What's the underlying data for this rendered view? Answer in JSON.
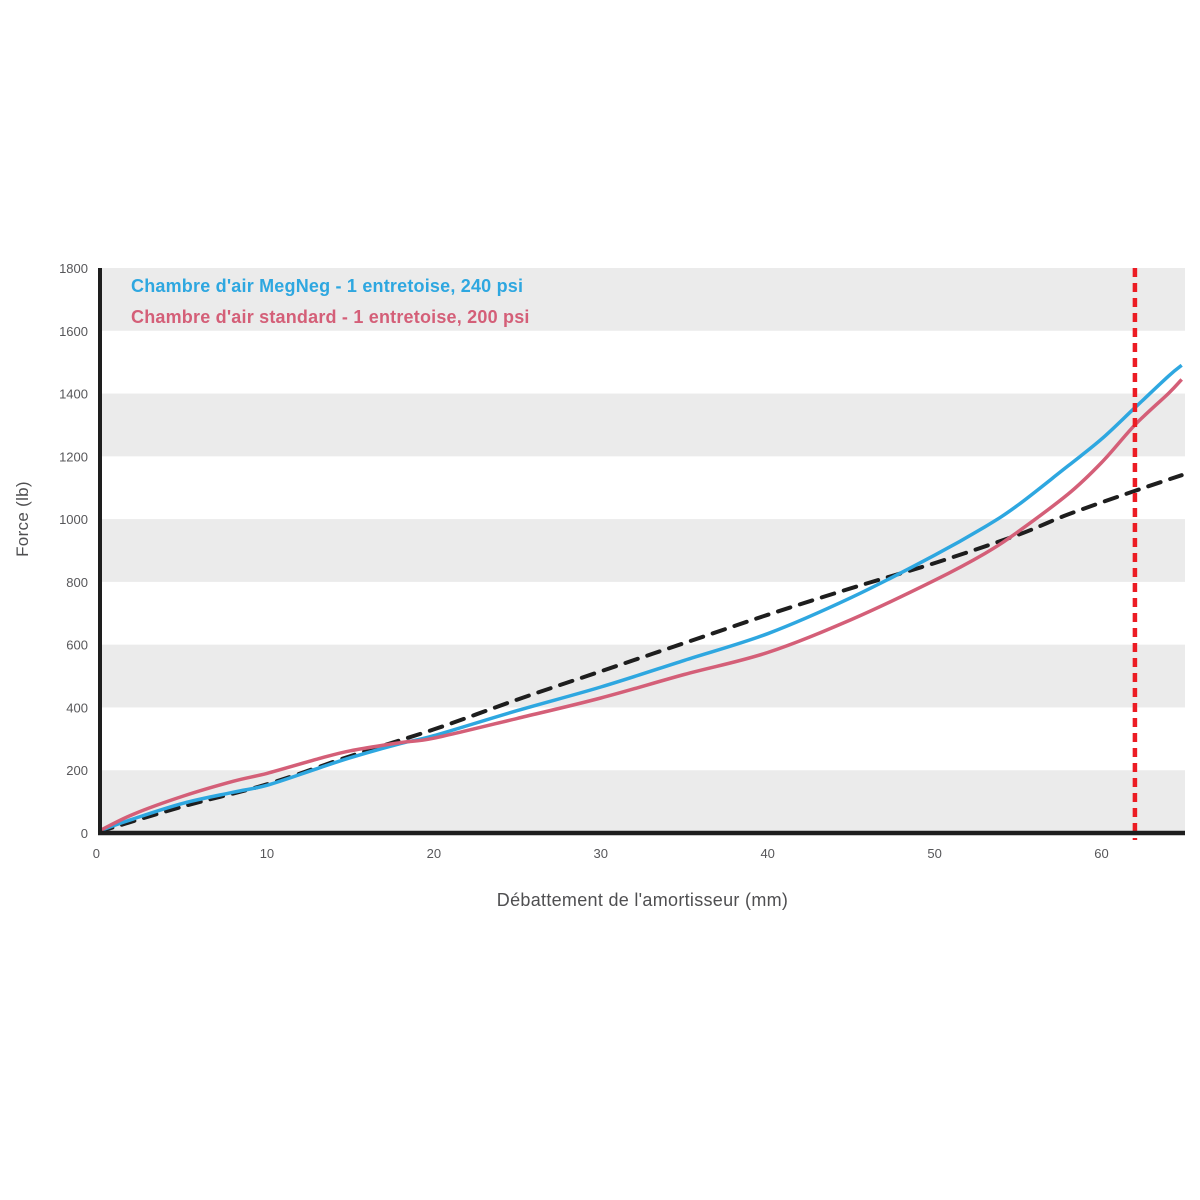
{
  "chart_data": {
    "type": "line",
    "title": "",
    "xlabel": "Débattement de l'amortisseur (mm)",
    "ylabel": "Force (lb)",
    "xlim": [
      0,
      65
    ],
    "ylim": [
      0,
      1800
    ],
    "x_ticks": [
      0,
      10,
      20,
      30,
      40,
      50,
      60
    ],
    "y_ticks": [
      0,
      200,
      400,
      600,
      800,
      1000,
      1200,
      1400,
      1600,
      1800
    ],
    "grid": "alternating-row-bands",
    "band_rows_lb": [
      [
        0,
        200
      ],
      [
        400,
        600
      ],
      [
        800,
        1000
      ],
      [
        1200,
        1400
      ],
      [
        1600,
        1800
      ]
    ],
    "band_color": "#EBEBEB",
    "axis_color": "#1E1E1E",
    "tick_label_color": "#57575a",
    "legend_position": "top-left-inside",
    "series": [
      {
        "name": "megneg",
        "label": "Chambre d'air MegNeg - 1 entretoise, 240 psi",
        "color": "#2EA7E0",
        "style": "solid",
        "points": [
          [
            0,
            8
          ],
          [
            2,
            45
          ],
          [
            5,
            95
          ],
          [
            8,
            130
          ],
          [
            10,
            152
          ],
          [
            13,
            205
          ],
          [
            15,
            240
          ],
          [
            18,
            285
          ],
          [
            20,
            310
          ],
          [
            25,
            390
          ],
          [
            30,
            465
          ],
          [
            35,
            550
          ],
          [
            40,
            635
          ],
          [
            45,
            750
          ],
          [
            50,
            885
          ],
          [
            53,
            975
          ],
          [
            55,
            1045
          ],
          [
            58,
            1170
          ],
          [
            60,
            1255
          ],
          [
            62,
            1355
          ],
          [
            64,
            1455
          ],
          [
            64.8,
            1490
          ]
        ]
      },
      {
        "name": "standard",
        "label": "Chambre d'air standard - 1 entretoise, 200 psi",
        "color": "#D45F78",
        "style": "solid",
        "points": [
          [
            0,
            8
          ],
          [
            2,
            60
          ],
          [
            5,
            118
          ],
          [
            8,
            165
          ],
          [
            10,
            190
          ],
          [
            13,
            235
          ],
          [
            15,
            262
          ],
          [
            18,
            288
          ],
          [
            20,
            302
          ],
          [
            25,
            365
          ],
          [
            30,
            430
          ],
          [
            35,
            505
          ],
          [
            40,
            575
          ],
          [
            45,
            680
          ],
          [
            50,
            805
          ],
          [
            53,
            890
          ],
          [
            55,
            960
          ],
          [
            58,
            1080
          ],
          [
            60,
            1180
          ],
          [
            62,
            1300
          ],
          [
            64,
            1400
          ],
          [
            64.8,
            1445
          ]
        ]
      },
      {
        "name": "coil-reference",
        "label": "",
        "color": "#1E1E1E",
        "style": "dashed",
        "points": [
          [
            0,
            5
          ],
          [
            5,
            85
          ],
          [
            10,
            155
          ],
          [
            15,
            245
          ],
          [
            20,
            330
          ],
          [
            25,
            425
          ],
          [
            30,
            515
          ],
          [
            35,
            605
          ],
          [
            40,
            695
          ],
          [
            45,
            780
          ],
          [
            50,
            860
          ],
          [
            55,
            950
          ],
          [
            58,
            1015
          ],
          [
            62,
            1090
          ],
          [
            64.8,
            1140
          ]
        ]
      }
    ],
    "marker_line": {
      "x": 62,
      "color": "#EC1C24",
      "style": "dashed",
      "orientation": "vertical"
    }
  }
}
